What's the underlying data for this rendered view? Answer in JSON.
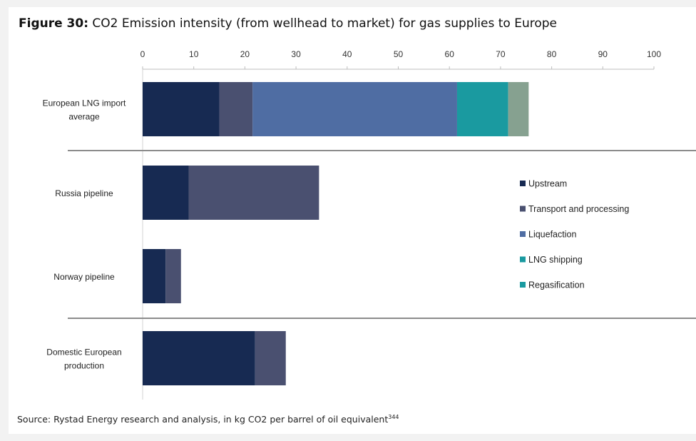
{
  "header": {
    "figure_label": "Figure 30:",
    "title": "CO2 Emission intensity (from wellhead to market) for gas supplies to Europe"
  },
  "footer": {
    "source": "Source: Rystad Energy research and analysis, in kg CO2 per barrel of oil equivalent",
    "footnote": "344"
  },
  "chart_data": {
    "type": "bar",
    "orientation": "horizontal",
    "stacked": true,
    "x_axis_position": "top",
    "xlim": [
      0,
      100
    ],
    "xticks": [
      0,
      10,
      20,
      30,
      40,
      50,
      60,
      70,
      80,
      90,
      100
    ],
    "categories": [
      [
        "European LNG import",
        "average"
      ],
      [
        "Russia pipeline"
      ],
      [
        "Norway pipeline"
      ],
      [
        "Domestic European",
        "production"
      ]
    ],
    "series": [
      {
        "name": "Upstream",
        "color": "#172a52",
        "values": [
          15,
          9,
          4.5,
          22
        ]
      },
      {
        "name": "Transport and processing",
        "color": "#4a5070",
        "values": [
          6.5,
          25.5,
          3,
          6
        ]
      },
      {
        "name": "Liquefaction",
        "color": "#4f6da3",
        "values": [
          40,
          0,
          0,
          0
        ]
      },
      {
        "name": "LNG shipping",
        "color": "#1a9aa0",
        "values": [
          10,
          0,
          0,
          0
        ]
      },
      {
        "name": "Regasification",
        "color": "#1a9aa0",
        "values": [
          0,
          0,
          0,
          0
        ]
      }
    ],
    "extra_segment": {
      "color": "#86a190",
      "values": [
        4,
        0,
        0,
        0
      ]
    },
    "legend_position": "right",
    "grid": false
  }
}
